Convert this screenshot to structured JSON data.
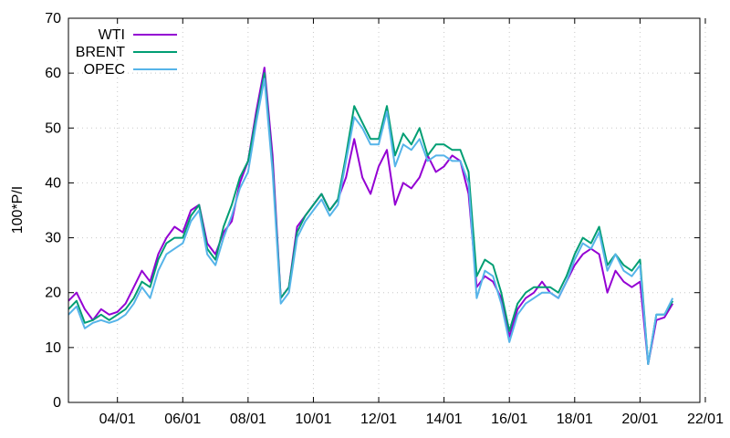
{
  "chart_data": {
    "type": "line",
    "title": "",
    "xlabel": "",
    "ylabel": "100*P/I",
    "ylim": [
      0,
      70
    ],
    "yticks": [
      0,
      10,
      20,
      30,
      40,
      50,
      60,
      70
    ],
    "xlim": [
      "2002-07",
      "2021-11"
    ],
    "xticks": [
      {
        "date": "2004-01",
        "label": "04/01"
      },
      {
        "date": "2006-01",
        "label": "06/01"
      },
      {
        "date": "2008-01",
        "label": "08/01"
      },
      {
        "date": "2010-01",
        "label": "10/01"
      },
      {
        "date": "2012-01",
        "label": "12/01"
      },
      {
        "date": "2014-01",
        "label": "14/01"
      },
      {
        "date": "2016-01",
        "label": "16/01"
      },
      {
        "date": "2018-01",
        "label": "18/01"
      },
      {
        "date": "2020-01",
        "label": "20/01"
      },
      {
        "date": "2022-01",
        "label": "22/01"
      }
    ],
    "grid": true,
    "legend_position": "top-left",
    "series": [
      {
        "name": "WTI",
        "color": "#9400d3",
        "points": [
          [
            "2002-07",
            18.5
          ],
          [
            "2002-10",
            20
          ],
          [
            "2003-01",
            17
          ],
          [
            "2003-04",
            15
          ],
          [
            "2003-07",
            17
          ],
          [
            "2003-10",
            16
          ],
          [
            "2004-01",
            16.5
          ],
          [
            "2004-04",
            18
          ],
          [
            "2004-07",
            21
          ],
          [
            "2004-10",
            24
          ],
          [
            "2005-01",
            22
          ],
          [
            "2005-04",
            27
          ],
          [
            "2005-07",
            30
          ],
          [
            "2005-10",
            32
          ],
          [
            "2006-01",
            31
          ],
          [
            "2006-04",
            35
          ],
          [
            "2006-07",
            36
          ],
          [
            "2006-10",
            29
          ],
          [
            "2007-01",
            27
          ],
          [
            "2007-04",
            31
          ],
          [
            "2007-07",
            33
          ],
          [
            "2007-10",
            40
          ],
          [
            "2008-01",
            44
          ],
          [
            "2008-04",
            53
          ],
          [
            "2008-07",
            61
          ],
          [
            "2008-10",
            45
          ],
          [
            "2009-01",
            19
          ],
          [
            "2009-04",
            21
          ],
          [
            "2009-07",
            32
          ],
          [
            "2009-10",
            34
          ],
          [
            "2010-01",
            36
          ],
          [
            "2010-04",
            38
          ],
          [
            "2010-07",
            35
          ],
          [
            "2010-10",
            37
          ],
          [
            "2011-01",
            41
          ],
          [
            "2011-04",
            48
          ],
          [
            "2011-07",
            41
          ],
          [
            "2011-10",
            38
          ],
          [
            "2012-01",
            43
          ],
          [
            "2012-04",
            46
          ],
          [
            "2012-07",
            36
          ],
          [
            "2012-10",
            40
          ],
          [
            "2013-01",
            39
          ],
          [
            "2013-04",
            41
          ],
          [
            "2013-07",
            45
          ],
          [
            "2013-10",
            42
          ],
          [
            "2014-01",
            43
          ],
          [
            "2014-04",
            45
          ],
          [
            "2014-07",
            44
          ],
          [
            "2014-10",
            38
          ],
          [
            "2015-01",
            21
          ],
          [
            "2015-04",
            23
          ],
          [
            "2015-07",
            22
          ],
          [
            "2015-10",
            19
          ],
          [
            "2016-01",
            12
          ],
          [
            "2016-04",
            17
          ],
          [
            "2016-07",
            19
          ],
          [
            "2016-10",
            20
          ],
          [
            "2017-01",
            22
          ],
          [
            "2017-04",
            20
          ],
          [
            "2017-07",
            19
          ],
          [
            "2017-10",
            22
          ],
          [
            "2018-01",
            25
          ],
          [
            "2018-04",
            27
          ],
          [
            "2018-07",
            28
          ],
          [
            "2018-10",
            27
          ],
          [
            "2019-01",
            20
          ],
          [
            "2019-04",
            24
          ],
          [
            "2019-07",
            22
          ],
          [
            "2019-10",
            21
          ],
          [
            "2020-01",
            22
          ],
          [
            "2020-04",
            7
          ],
          [
            "2020-07",
            15
          ],
          [
            "2020-10",
            15.5
          ],
          [
            "2021-01",
            18
          ]
        ]
      },
      {
        "name": "BRENT",
        "color": "#009e73",
        "points": [
          [
            "2002-07",
            17
          ],
          [
            "2002-10",
            18.5
          ],
          [
            "2003-01",
            14.5
          ],
          [
            "2003-04",
            15
          ],
          [
            "2003-07",
            16
          ],
          [
            "2003-10",
            15
          ],
          [
            "2004-01",
            16
          ],
          [
            "2004-04",
            17
          ],
          [
            "2004-07",
            19
          ],
          [
            "2004-10",
            22
          ],
          [
            "2005-01",
            21
          ],
          [
            "2005-04",
            26
          ],
          [
            "2005-07",
            29
          ],
          [
            "2005-10",
            30
          ],
          [
            "2006-01",
            30
          ],
          [
            "2006-04",
            34
          ],
          [
            "2006-07",
            36
          ],
          [
            "2006-10",
            28
          ],
          [
            "2007-01",
            26
          ],
          [
            "2007-04",
            32
          ],
          [
            "2007-07",
            36
          ],
          [
            "2007-10",
            41
          ],
          [
            "2008-01",
            44
          ],
          [
            "2008-04",
            52
          ],
          [
            "2008-07",
            60
          ],
          [
            "2008-10",
            43
          ],
          [
            "2009-01",
            19
          ],
          [
            "2009-04",
            21
          ],
          [
            "2009-07",
            31
          ],
          [
            "2009-10",
            34
          ],
          [
            "2010-01",
            36
          ],
          [
            "2010-04",
            38
          ],
          [
            "2010-07",
            35
          ],
          [
            "2010-10",
            37
          ],
          [
            "2011-01",
            45
          ],
          [
            "2011-04",
            54
          ],
          [
            "2011-07",
            51
          ],
          [
            "2011-10",
            48
          ],
          [
            "2012-01",
            48
          ],
          [
            "2012-04",
            54
          ],
          [
            "2012-07",
            45
          ],
          [
            "2012-10",
            49
          ],
          [
            "2013-01",
            47
          ],
          [
            "2013-04",
            50
          ],
          [
            "2013-07",
            45
          ],
          [
            "2013-10",
            47
          ],
          [
            "2014-01",
            47
          ],
          [
            "2014-04",
            46
          ],
          [
            "2014-07",
            46
          ],
          [
            "2014-10",
            42
          ],
          [
            "2015-01",
            23
          ],
          [
            "2015-04",
            26
          ],
          [
            "2015-07",
            25
          ],
          [
            "2015-10",
            20
          ],
          [
            "2016-01",
            13
          ],
          [
            "2016-04",
            18
          ],
          [
            "2016-07",
            20
          ],
          [
            "2016-10",
            21
          ],
          [
            "2017-01",
            21
          ],
          [
            "2017-04",
            21
          ],
          [
            "2017-07",
            20
          ],
          [
            "2017-10",
            23
          ],
          [
            "2018-01",
            27
          ],
          [
            "2018-04",
            30
          ],
          [
            "2018-07",
            29
          ],
          [
            "2018-10",
            32
          ],
          [
            "2019-01",
            25
          ],
          [
            "2019-04",
            27
          ],
          [
            "2019-07",
            25
          ],
          [
            "2019-10",
            24
          ],
          [
            "2020-01",
            26
          ],
          [
            "2020-04",
            7
          ],
          [
            "2020-07",
            16
          ],
          [
            "2020-10",
            16
          ],
          [
            "2021-01",
            18.5
          ]
        ]
      },
      {
        "name": "OPEC",
        "color": "#56b4e9",
        "points": [
          [
            "2002-07",
            16
          ],
          [
            "2002-10",
            17.5
          ],
          [
            "2003-01",
            13.5
          ],
          [
            "2003-04",
            14.5
          ],
          [
            "2003-07",
            15
          ],
          [
            "2003-10",
            14.5
          ],
          [
            "2004-01",
            15
          ],
          [
            "2004-04",
            16
          ],
          [
            "2004-07",
            18
          ],
          [
            "2004-10",
            21
          ],
          [
            "2005-01",
            19
          ],
          [
            "2005-04",
            24
          ],
          [
            "2005-07",
            27
          ],
          [
            "2005-10",
            28
          ],
          [
            "2006-01",
            29
          ],
          [
            "2006-04",
            33
          ],
          [
            "2006-07",
            35
          ],
          [
            "2006-10",
            27
          ],
          [
            "2007-01",
            25
          ],
          [
            "2007-04",
            30
          ],
          [
            "2007-07",
            34
          ],
          [
            "2007-10",
            39
          ],
          [
            "2008-01",
            42
          ],
          [
            "2008-04",
            51
          ],
          [
            "2008-07",
            59
          ],
          [
            "2008-10",
            42
          ],
          [
            "2009-01",
            18
          ],
          [
            "2009-04",
            20
          ],
          [
            "2009-07",
            30
          ],
          [
            "2009-10",
            33
          ],
          [
            "2010-01",
            35
          ],
          [
            "2010-04",
            37
          ],
          [
            "2010-07",
            34
          ],
          [
            "2010-10",
            36
          ],
          [
            "2011-01",
            44
          ],
          [
            "2011-04",
            52
          ],
          [
            "2011-07",
            50
          ],
          [
            "2011-10",
            47
          ],
          [
            "2012-01",
            47
          ],
          [
            "2012-04",
            53
          ],
          [
            "2012-07",
            43
          ],
          [
            "2012-10",
            47
          ],
          [
            "2013-01",
            46
          ],
          [
            "2013-04",
            48
          ],
          [
            "2013-07",
            44
          ],
          [
            "2013-10",
            45
          ],
          [
            "2014-01",
            45
          ],
          [
            "2014-04",
            44
          ],
          [
            "2014-07",
            44
          ],
          [
            "2014-10",
            40
          ],
          [
            "2015-01",
            19
          ],
          [
            "2015-04",
            24
          ],
          [
            "2015-07",
            23
          ],
          [
            "2015-10",
            18
          ],
          [
            "2016-01",
            11
          ],
          [
            "2016-04",
            16
          ],
          [
            "2016-07",
            18
          ],
          [
            "2016-10",
            19
          ],
          [
            "2017-01",
            20
          ],
          [
            "2017-04",
            20
          ],
          [
            "2017-07",
            19
          ],
          [
            "2017-10",
            22
          ],
          [
            "2018-01",
            26
          ],
          [
            "2018-04",
            29
          ],
          [
            "2018-07",
            28
          ],
          [
            "2018-10",
            31
          ],
          [
            "2019-01",
            24
          ],
          [
            "2019-04",
            27
          ],
          [
            "2019-07",
            24
          ],
          [
            "2019-10",
            23
          ],
          [
            "2020-01",
            25
          ],
          [
            "2020-04",
            7
          ],
          [
            "2020-07",
            16
          ],
          [
            "2020-10",
            16
          ],
          [
            "2021-01",
            19
          ]
        ]
      }
    ]
  }
}
